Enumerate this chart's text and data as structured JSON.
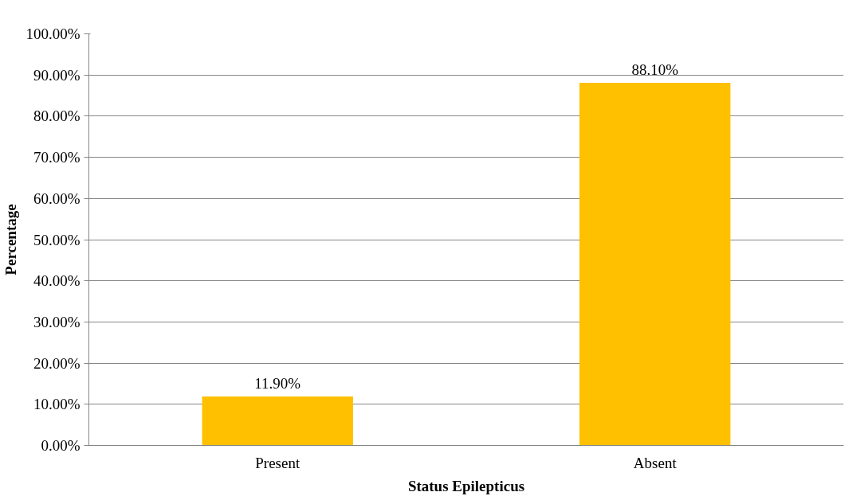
{
  "chart_data": {
    "type": "bar",
    "xlabel": "Status Epilepticus",
    "ylabel": "Percentage",
    "categories": [
      "Present",
      "Absent"
    ],
    "values": [
      11.9,
      88.1
    ],
    "color": "#ffc000",
    "value_labels": [
      "11.90%",
      "88.10%"
    ],
    "ylim": [
      0,
      100
    ],
    "yticks": [
      {
        "value": 0,
        "label": "0.00%"
      },
      {
        "value": 10,
        "label": "10.00%"
      },
      {
        "value": 20,
        "label": "20.00%"
      },
      {
        "value": 30,
        "label": "30.00%"
      },
      {
        "value": 40,
        "label": "40.00%"
      },
      {
        "value": 50,
        "label": "50.00%"
      },
      {
        "value": 60,
        "label": "60.00%"
      },
      {
        "value": 70,
        "label": "70.00%"
      },
      {
        "value": 80,
        "label": "80.00%"
      },
      {
        "value": 90,
        "label": "90.00%"
      },
      {
        "value": 100,
        "label": "100.00%"
      }
    ],
    "grid": "y"
  }
}
